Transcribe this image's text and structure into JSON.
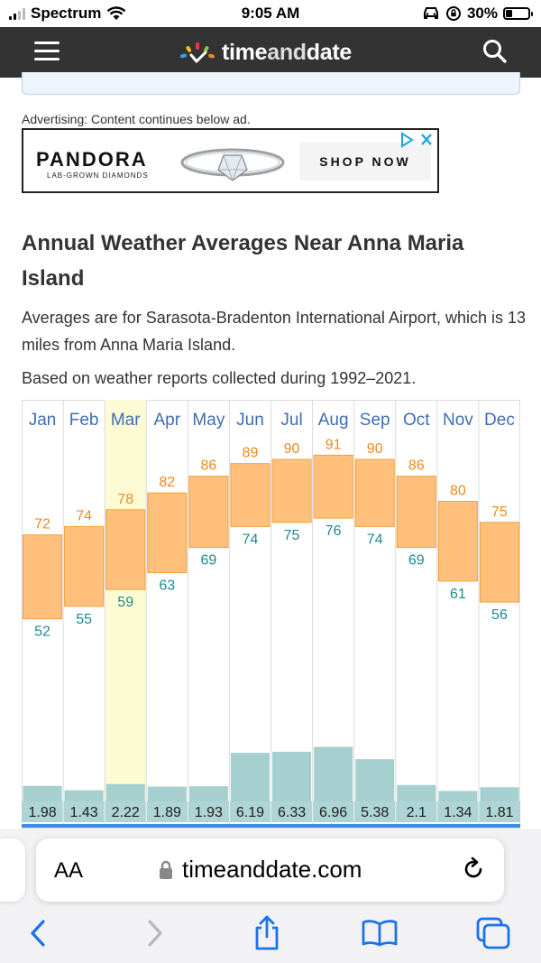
{
  "status_bar": {
    "carrier": "Spectrum",
    "time": "9:05 AM",
    "battery": "30%",
    "battery_level": 0.3
  },
  "header": {
    "logo_part1": "time",
    "logo_part2": "and",
    "logo_part3": "date"
  },
  "ad": {
    "label": "Advertising: Content continues below ad.",
    "brand": "PANDORA",
    "brand_sub": "LAB-GROWN DIAMONDS",
    "cta": "SHOP NOW"
  },
  "article": {
    "title": "Annual Weather Averages Near Anna Maria Island",
    "intro": "Averages are for Sarasota-Bradenton International Airport, which is 13 miles from Anna Maria Island.",
    "basis": "Based on weather reports collected during 1992–2021."
  },
  "chart_data": {
    "type": "bar",
    "categories": [
      "Jan",
      "Feb",
      "Mar",
      "Apr",
      "May",
      "Jun",
      "Jul",
      "Aug",
      "Sep",
      "Oct",
      "Nov",
      "Dec"
    ],
    "highlighted_category": "Mar",
    "series": [
      {
        "name": "",
        "values": [
          72,
          74,
          78,
          82,
          86,
          89,
          90,
          91,
          90,
          86,
          80,
          75
        ]
      },
      {
        "name": "",
        "values": [
          52,
          55,
          59,
          63,
          69,
          74,
          75,
          76,
          74,
          69,
          61,
          56
        ]
      },
      {
        "name": "",
        "values": [
          1.98,
          1.43,
          2.22,
          1.89,
          1.93,
          6.19,
          6.33,
          6.96,
          5.38,
          2.1,
          1.34,
          1.81
        ]
      }
    ],
    "colors": {
      "temp_bar": "#fec07a",
      "high_label": "#ee8a1b",
      "low_label": "#1e8a8e",
      "precip_bar": "#a6cfd0",
      "month_label": "#3f6db5",
      "highlight": "#fdfbd3"
    }
  },
  "safari": {
    "aa": "AA",
    "url": "timeanddate.com"
  }
}
